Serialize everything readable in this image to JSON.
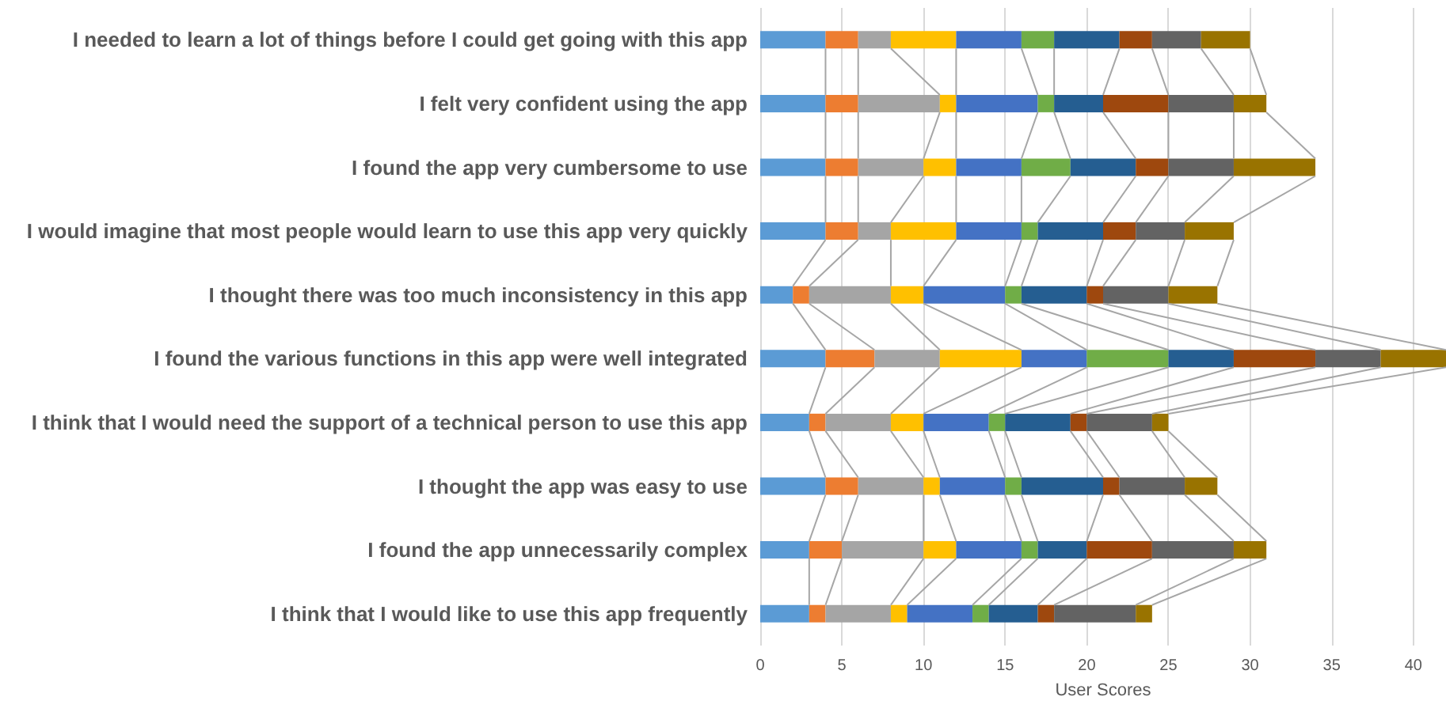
{
  "chart_data": {
    "type": "bar",
    "orientation": "horizontal",
    "stacked": true,
    "xlabel": "User Scores",
    "categories": [
      "I needed to learn a lot of things before I could get going with this app",
      "I felt very confident using the app",
      "I found the app very cumbersome to use",
      "I would imagine that most people would learn to use this app very quickly",
      "I thought there was too much inconsistency in this app",
      "I found the various functions in this app were well integrated",
      "I think that I would need the support of a technical person to use this app",
      "I thought the app was easy to use",
      "I found the app unnecessarily complex",
      "I think that I would like to use this app frequently"
    ],
    "series": [
      {
        "color": "#5b9bd5",
        "values": [
          4,
          4,
          4,
          4,
          2,
          4,
          3,
          4,
          3,
          3
        ]
      },
      {
        "color": "#ed7d31",
        "values": [
          2,
          2,
          2,
          2,
          1,
          3,
          1,
          2,
          2,
          1
        ]
      },
      {
        "color": "#a5a5a5",
        "values": [
          2,
          5,
          4,
          2,
          5,
          4,
          4,
          4,
          5,
          4
        ]
      },
      {
        "color": "#ffc000",
        "values": [
          4,
          1,
          2,
          4,
          2,
          5,
          2,
          1,
          2,
          1
        ]
      },
      {
        "color": "#4472c4",
        "values": [
          4,
          5,
          4,
          4,
          5,
          4,
          4,
          4,
          4,
          4
        ]
      },
      {
        "color": "#70ad47",
        "values": [
          2,
          1,
          3,
          1,
          1,
          5,
          1,
          1,
          1,
          1
        ]
      },
      {
        "color": "#255e91",
        "values": [
          4,
          3,
          4,
          4,
          4,
          4,
          4,
          5,
          3,
          3
        ]
      },
      {
        "color": "#9e480e",
        "values": [
          2,
          4,
          2,
          2,
          1,
          5,
          1,
          1,
          4,
          1
        ]
      },
      {
        "color": "#636363",
        "values": [
          3,
          4,
          4,
          3,
          4,
          4,
          4,
          4,
          5,
          5
        ]
      },
      {
        "color": "#997300",
        "values": [
          3,
          2,
          5,
          3,
          3,
          4,
          1,
          2,
          2,
          1
        ]
      }
    ],
    "xlim": [
      0,
      42
    ],
    "xticks": [
      0,
      5,
      10,
      15,
      20,
      25,
      30,
      35,
      40
    ],
    "grid": "x"
  }
}
